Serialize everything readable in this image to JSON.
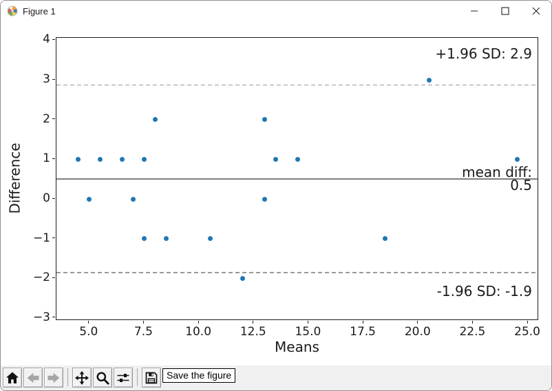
{
  "window": {
    "title": "Figure 1"
  },
  "chart_data": {
    "type": "scatter",
    "title": "",
    "xlabel": "Means",
    "ylabel": "Difference",
    "point_color": "#1f77b4",
    "line_color_solid": "#808080",
    "line_color_dashed": "#999999",
    "xlim": [
      3.5,
      25.5
    ],
    "ylim": [
      -3.07,
      4.06
    ],
    "grid": false,
    "points": [
      [
        4.5,
        1
      ],
      [
        5,
        0
      ],
      [
        5.5,
        1
      ],
      [
        6.5,
        1
      ],
      [
        7,
        0
      ],
      [
        7.5,
        1
      ],
      [
        7.5,
        -1
      ],
      [
        8,
        2
      ],
      [
        8.5,
        -1
      ],
      [
        10.5,
        -1
      ],
      [
        12,
        -2
      ],
      [
        13,
        2
      ],
      [
        13,
        0
      ],
      [
        13.5,
        1
      ],
      [
        14.5,
        1
      ],
      [
        18.5,
        -1
      ],
      [
        20.5,
        3
      ],
      [
        24.5,
        1
      ]
    ],
    "xticks": {
      "values": [
        5,
        7.5,
        10,
        12.5,
        15,
        17.5,
        20,
        22.5,
        25
      ],
      "labels": [
        "5.0",
        "7.5",
        "10.0",
        "12.5",
        "15.0",
        "17.5",
        "20.0",
        "22.5",
        "25.0"
      ]
    },
    "yticks": {
      "values": [
        -3,
        -2,
        -1,
        0,
        1,
        2,
        3,
        4
      ],
      "labels": [
        "−3",
        "−2",
        "−1",
        "0",
        "1",
        "2",
        "3",
        "4"
      ]
    },
    "lines": [
      {
        "name": "upper-limit-line",
        "value": 2.87,
        "style": "dashed"
      },
      {
        "name": "mean-line",
        "value": 0.5,
        "style": "solid"
      },
      {
        "name": "lower-limit-line",
        "value": -1.86,
        "style": "dashed"
      }
    ],
    "annotations": [
      {
        "name": "upper-limit-label",
        "text": "+1.96 SD: 2.9",
        "line": 0
      },
      {
        "name": "mean-diff-label",
        "text": "mean diff:",
        "line": 1
      },
      {
        "name": "mean-diff-value",
        "text": "0.5",
        "line": 1
      },
      {
        "name": "lower-limit-label",
        "text": "-1.96 SD: -1.9",
        "line": 2
      }
    ]
  },
  "toolbar": {
    "buttons": [
      {
        "icon": "home",
        "disabled": false
      },
      {
        "icon": "back",
        "disabled": true
      },
      {
        "icon": "forward",
        "disabled": true
      },
      {
        "icon": "separator"
      },
      {
        "icon": "pan",
        "disabled": false
      },
      {
        "icon": "zoom",
        "disabled": false
      },
      {
        "icon": "configure-subplots",
        "disabled": false
      },
      {
        "icon": "separator"
      },
      {
        "icon": "save",
        "disabled": false
      }
    ],
    "tooltip": "Save the figure"
  }
}
